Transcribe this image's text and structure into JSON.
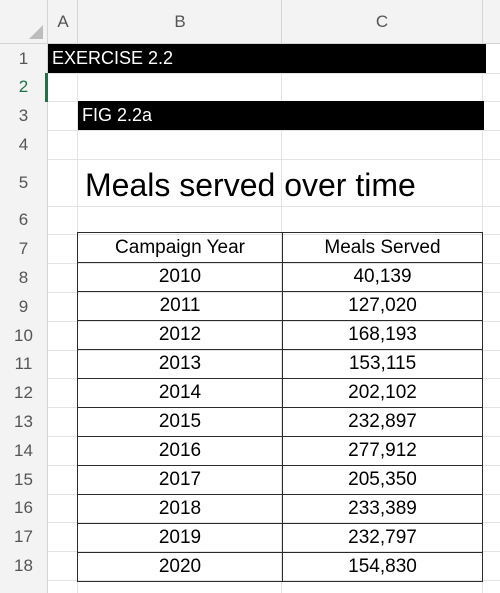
{
  "spreadsheet": {
    "columns": [
      "A",
      "B",
      "C"
    ],
    "rows": [
      "1",
      "2",
      "3",
      "4",
      "5",
      "6",
      "7",
      "8",
      "9",
      "10",
      "11",
      "12",
      "13",
      "14",
      "15",
      "16",
      "17",
      "18"
    ],
    "selected_row": "2"
  },
  "cells": {
    "exercise_label": "EXERCISE 2.2",
    "fig_label": "FIG 2.2a",
    "chart_title": "Meals served over time"
  },
  "table": {
    "headers": [
      "Campaign Year",
      "Meals Served"
    ],
    "rows": [
      [
        "2010",
        "40,139"
      ],
      [
        "2011",
        "127,020"
      ],
      [
        "2012",
        "168,193"
      ],
      [
        "2013",
        "153,115"
      ],
      [
        "2014",
        "202,102"
      ],
      [
        "2015",
        "232,897"
      ],
      [
        "2016",
        "277,912"
      ],
      [
        "2017",
        "205,350"
      ],
      [
        "2018",
        "233,389"
      ],
      [
        "2019",
        "232,797"
      ],
      [
        "2020",
        "154,830"
      ]
    ]
  },
  "colors": {
    "selection_accent": "#1f7244",
    "header_bg": "#f3f3f3",
    "label_bar": "#000000"
  }
}
